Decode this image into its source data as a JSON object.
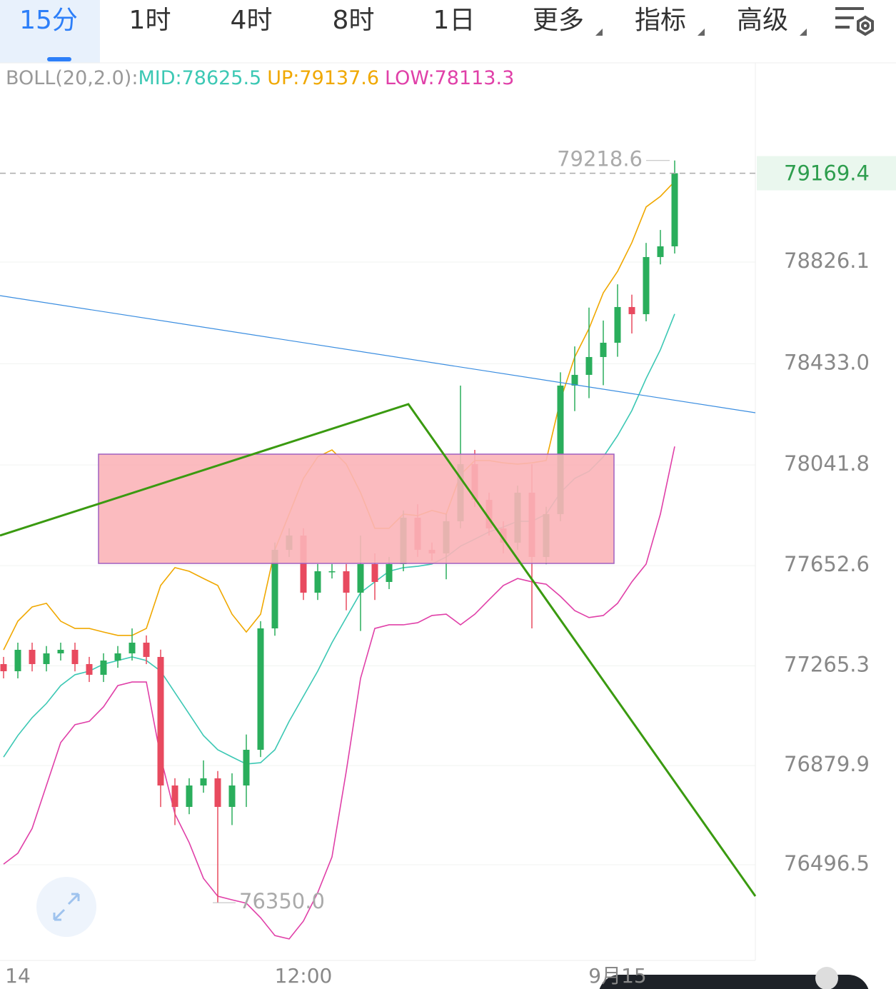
{
  "tabs": [
    "15分",
    "1时",
    "4时",
    "8时",
    "1日",
    "更多",
    "指标",
    "高级"
  ],
  "indicator": {
    "name": "BOLL(20,2.0):",
    "mid": "MID:78625.5",
    "up": "UP:79137.6",
    "low": "LOW:78113.3"
  },
  "chart_data": {
    "type": "candlestick",
    "categories": [
      null,
      "14",
      null,
      null,
      null,
      null,
      null,
      null,
      null,
      null,
      null,
      null,
      null,
      null,
      null,
      null,
      null,
      null,
      null,
      null,
      null,
      "12:00",
      null,
      null,
      null,
      null,
      null,
      null,
      null,
      null,
      null,
      null,
      null,
      null,
      null,
      null,
      null,
      null,
      null,
      null,
      null,
      null,
      null,
      "9月15",
      null,
      null,
      null,
      null
    ],
    "open": [
      77272.2,
      77244.6,
      77327.4,
      77272.2,
      77313.6,
      77327.4,
      77272.2,
      77230.8,
      77286,
      77313.6,
      77355,
      77299.8,
      76803,
      76720.2,
      76803,
      76830.6,
      76720.2,
      76803,
      76941,
      77410.2,
      77713.8,
      77769,
      77548.2,
      77631,
      77631,
      77548.2,
      77658.6,
      77589.6,
      77658.6,
      77838,
      77713.8,
      77700,
      77824.2,
      78045,
      77907,
      77796.6,
      77741.4,
      77934.6,
      77686.2,
      77851.8,
      78348.6,
      78390,
      78459,
      78514.2,
      78652.2,
      78624.6,
      78845.4,
      78886.8
    ],
    "high": [
      77300,
      77355,
      77355,
      77342,
      77355,
      77355,
      77300,
      77314,
      77342,
      77410,
      77383,
      77328,
      76831,
      76831,
      76900,
      76859,
      76850,
      77000,
      77438,
      77742,
      77797,
      77797,
      77659,
      77659,
      77659,
      77769,
      77700,
      77686,
      77866,
      77890,
      77742,
      77852,
      78348.6,
      78100,
      77935,
      77824,
      77962,
      78045,
      77880,
      78400,
      78500,
      78650,
      78600,
      78740,
      78700,
      78900,
      78950,
      79218.6
    ],
    "low": [
      77217,
      77217,
      77244,
      77244,
      77286,
      77244,
      77203,
      77203,
      77258,
      77286,
      77272,
      76720,
      76650,
      76692,
      76775,
      76350,
      76650,
      76720,
      76913,
      77382,
      77686,
      77520,
      77520,
      77603,
      77480,
      77400,
      77520,
      77562,
      77631,
      77686,
      77672,
      77600,
      77797,
      77879,
      77769,
      77700,
      77714,
      77410,
      77658,
      77824,
      78250,
      78300,
      78350,
      78460,
      78550,
      78597,
      78817,
      78859
    ],
    "close": [
      77244.6,
      77327.4,
      77272.2,
      77313.6,
      77327.4,
      77272.2,
      77230.8,
      77286,
      77313.6,
      77355,
      77299.8,
      76803,
      76720.2,
      76803,
      76830.6,
      76720.2,
      76803,
      76941,
      77410.2,
      77713.8,
      77769,
      77548.2,
      77631,
      77631,
      77548.2,
      77658.6,
      77589.6,
      77658.6,
      77838,
      77713.8,
      77700,
      77824.2,
      78045,
      77907,
      77796.6,
      77741.4,
      77934.6,
      77686.2,
      77851.8,
      78348.6,
      78390,
      78459,
      78514.2,
      78652.2,
      78624.6,
      78845.4,
      78886.8,
      79169.4
    ],
    "up_color": "#2aae5c",
    "down_color": "#e84a5f",
    "lines": [
      {
        "name": "MID",
        "color": "#3cc8b4",
        "values": [
          76913,
          76996,
          77065,
          77120,
          77189,
          77231,
          77245,
          77272,
          77286,
          77300,
          77286,
          77245,
          77162,
          77079,
          76996,
          76941,
          76913,
          76886,
          76891,
          76941,
          77051,
          77148,
          77245,
          77355,
          77452,
          77548,
          77590,
          77631,
          77645,
          77650,
          77659,
          77686,
          77728,
          77755,
          77783,
          77802,
          77824,
          77824,
          77852,
          77935,
          77990,
          78017,
          78073,
          78155,
          78252,
          78376,
          78487,
          78625.5
        ]
      },
      {
        "name": "UP",
        "color": "#f0a800",
        "values": [
          77327,
          77438,
          77493,
          77507,
          77438,
          77410,
          77410,
          77396,
          77383,
          77383,
          77410,
          77576,
          77645,
          77631,
          77603,
          77576,
          77465,
          77396,
          77465,
          77714,
          77852,
          77990,
          78073,
          78100,
          78045,
          77935,
          77797,
          77797,
          77852,
          77846,
          77866,
          77852,
          78004,
          78059,
          78059,
          78050,
          78045,
          78050,
          78059,
          78293,
          78459,
          78569,
          78707,
          78790,
          78901,
          79039,
          79080,
          79137.6
        ]
      },
      {
        "name": "LOW",
        "color": "#e040a8",
        "values": [
          76499,
          76541,
          76637,
          76803,
          76969,
          77038,
          77051,
          77107,
          77189,
          77203,
          77203,
          76913,
          76693,
          76582,
          76444,
          76375,
          76361,
          76348,
          76292,
          76223,
          76210,
          76279,
          76389,
          76527,
          76858,
          77217,
          77410,
          77424,
          77424,
          77432,
          77460,
          77465,
          77424,
          77465,
          77521,
          77576,
          77603,
          77590,
          77581,
          77534,
          77479,
          77452,
          77460,
          77507,
          77590,
          77659,
          77852,
          78113.3
        ]
      }
    ],
    "ylim": [
      76126.8,
      79596
    ],
    "yticks": [
      78826.1,
      {
        "value": 78433,
        "label": "78433.0"
      },
      78041.8,
      77652.6,
      77265.3,
      76879.9,
      76496.5
    ],
    "grid": true,
    "last_price": 79169.4,
    "annotations": [
      {
        "value": 79218.6,
        "label": "79218.6"
      },
      {
        "value": 76350,
        "label": "76350.0"
      }
    ]
  }
}
